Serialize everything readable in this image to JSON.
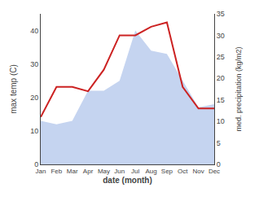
{
  "chart_data": {
    "type": "line",
    "xlabel": "date (month)",
    "ylabel": "max temp (C)",
    "y2label": "med. precipitation (kg/m2)",
    "categories": [
      "Jan",
      "Feb",
      "Mar",
      "Apr",
      "May",
      "Jun",
      "Jul",
      "Aug",
      "Sep",
      "Oct",
      "Nov",
      "Dec"
    ],
    "series": [
      {
        "type": "area",
        "color": "#c5d4f0",
        "values": [
          13,
          12,
          13,
          22,
          22,
          25,
          40,
          34,
          33,
          25,
          17,
          18
        ]
      },
      {
        "type": "line",
        "color": "#cc2222",
        "axis": "y2",
        "values": [
          11,
          18,
          18,
          17,
          22,
          30,
          30,
          32,
          33,
          18,
          13,
          13
        ]
      }
    ],
    "ylim": [
      0,
      45
    ],
    "yticks": [
      0,
      10,
      20,
      30,
      40
    ],
    "y2lim": [
      0,
      35
    ],
    "y2ticks": [
      0,
      5,
      10,
      15,
      20,
      25,
      30,
      35
    ],
    "grid": false
  }
}
